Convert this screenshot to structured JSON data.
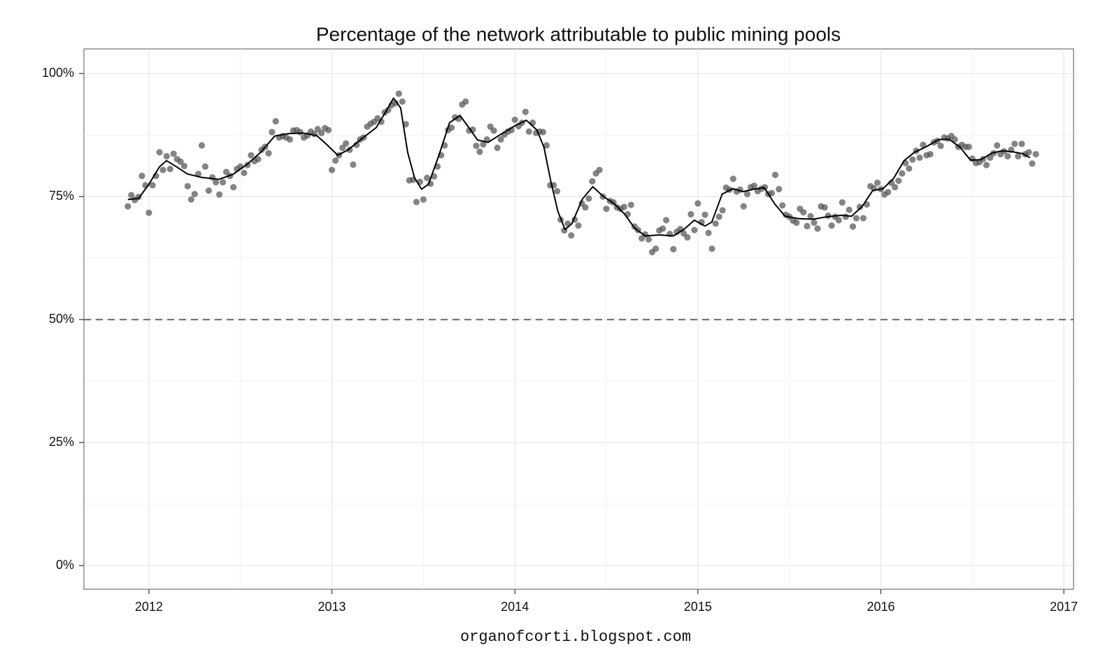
{
  "chart_data": {
    "type": "scatter",
    "title": "Percentage of the network attributable to public mining pools",
    "caption": "organofcorti.blogspot.com",
    "xlim": [
      2011.645,
      2017.053
    ],
    "xticks": [
      2012,
      2013,
      2014,
      2015,
      2016,
      2017
    ],
    "ylim": [
      -4.8,
      105
    ],
    "yticks": [
      {
        "value": 0,
        "label": "0%"
      },
      {
        "value": 25,
        "label": "25%"
      },
      {
        "value": 50,
        "label": "50%"
      },
      {
        "value": 75,
        "label": "75%"
      },
      {
        "value": 100,
        "label": "100%"
      }
    ],
    "grid": true,
    "minor_grid": true,
    "hline": 50,
    "hline_color": "#666666",
    "series": [
      {
        "type": "scatter",
        "color": "#555555",
        "x": [
          2011.885,
          2011.904,
          2011.923,
          2011.943,
          2011.962,
          2011.981,
          2012,
          2012.02,
          2012.039,
          2012.058,
          2012.077,
          2012.097,
          2012.116,
          2012.135,
          2012.154,
          2012.173,
          2012.193,
          2012.212,
          2012.231,
          2012.25,
          2012.27,
          2012.289,
          2012.308,
          2012.327,
          2012.347,
          2012.366,
          2012.385,
          2012.404,
          2012.423,
          2012.443,
          2012.462,
          2012.481,
          2012.5,
          2012.52,
          2012.539,
          2012.558,
          2012.577,
          2012.597,
          2012.616,
          2012.635,
          2012.654,
          2012.673,
          2012.693,
          2012.712,
          2012.731,
          2012.75,
          2012.77,
          2012.789,
          2012.808,
          2012.827,
          2012.847,
          2012.866,
          2012.885,
          2012.904,
          2012.923,
          2012.943,
          2012.962,
          2012.981,
          2013,
          2013.02,
          2013.039,
          2013.058,
          2013.077,
          2013.097,
          2013.116,
          2013.135,
          2013.154,
          2013.173,
          2013.193,
          2013.212,
          2013.231,
          2013.25,
          2013.27,
          2013.289,
          2013.308,
          2013.327,
          2013.347,
          2013.366,
          2013.385,
          2013.404,
          2013.423,
          2013.443,
          2013.462,
          2013.481,
          2013.5,
          2013.52,
          2013.539,
          2013.558,
          2013.577,
          2013.597,
          2013.616,
          2013.635,
          2013.654,
          2013.673,
          2013.693,
          2013.712,
          2013.731,
          2013.75,
          2013.77,
          2013.789,
          2013.808,
          2013.827,
          2013.847,
          2013.866,
          2013.885,
          2013.904,
          2013.923,
          2013.943,
          2013.962,
          2013.981,
          2014,
          2014.02,
          2014.039,
          2014.058,
          2014.077,
          2014.097,
          2014.116,
          2014.135,
          2014.154,
          2014.173,
          2014.193,
          2014.212,
          2014.231,
          2014.25,
          2014.27,
          2014.289,
          2014.308,
          2014.327,
          2014.347,
          2014.366,
          2014.385,
          2014.404,
          2014.423,
          2014.443,
          2014.462,
          2014.481,
          2014.5,
          2014.52,
          2014.539,
          2014.558,
          2014.577,
          2014.597,
          2014.616,
          2014.635,
          2014.654,
          2014.673,
          2014.693,
          2014.712,
          2014.731,
          2014.75,
          2014.77,
          2014.789,
          2014.808,
          2014.827,
          2014.847,
          2014.866,
          2014.885,
          2014.904,
          2014.923,
          2014.943,
          2014.962,
          2014.981,
          2015,
          2015.02,
          2015.039,
          2015.058,
          2015.077,
          2015.097,
          2015.116,
          2015.135,
          2015.154,
          2015.173,
          2015.193,
          2015.212,
          2015.231,
          2015.25,
          2015.27,
          2015.289,
          2015.308,
          2015.327,
          2015.347,
          2015.366,
          2015.385,
          2015.404,
          2015.423,
          2015.443,
          2015.462,
          2015.481,
          2015.5,
          2015.52,
          2015.539,
          2015.558,
          2015.577,
          2015.597,
          2015.616,
          2015.635,
          2015.654,
          2015.673,
          2015.693,
          2015.712,
          2015.731,
          2015.75,
          2015.77,
          2015.789,
          2015.808,
          2015.827,
          2015.847,
          2015.866,
          2015.885,
          2015.904,
          2015.923,
          2015.943,
          2015.962,
          2015.981,
          2016,
          2016.02,
          2016.039,
          2016.058,
          2016.077,
          2016.097,
          2016.116,
          2016.135,
          2016.154,
          2016.173,
          2016.193,
          2016.212,
          2016.231,
          2016.25,
          2016.27,
          2016.289,
          2016.308,
          2016.327,
          2016.347,
          2016.366,
          2016.385,
          2016.404,
          2016.423,
          2016.443,
          2016.462,
          2016.481,
          2016.5,
          2016.52,
          2016.539,
          2016.558,
          2016.577,
          2016.597,
          2016.616,
          2016.635,
          2016.654,
          2016.673,
          2016.693,
          2016.712,
          2016.731,
          2016.75,
          2016.77,
          2016.789,
          2016.808,
          2016.827,
          2016.847
        ],
        "values": [
          73.0,
          75.3,
          74.3,
          74.9,
          79.2,
          77.3,
          71.7,
          77.3,
          79.2,
          84.0,
          80.4,
          83.2,
          80.6,
          83.7,
          82.6,
          82.1,
          81.2,
          77.1,
          74.4,
          75.5,
          79.6,
          85.4,
          81.1,
          76.2,
          78.9,
          77.9,
          75.4,
          77.9,
          80.0,
          79.2,
          76.9,
          80.6,
          81.1,
          79.8,
          81.4,
          83.4,
          82.2,
          82.6,
          84.5,
          85.1,
          83.8,
          88.1,
          90.3,
          87.0,
          87.3,
          87.0,
          86.6,
          88.4,
          88.5,
          88.1,
          87.0,
          87.4,
          88.2,
          87.7,
          88.7,
          87.9,
          88.9,
          88.5,
          80.4,
          82.3,
          83.4,
          84.9,
          85.8,
          84.5,
          81.5,
          85.5,
          86.6,
          87.0,
          89.2,
          89.8,
          90.2,
          90.9,
          90.2,
          92.1,
          92.6,
          93.6,
          94.0,
          95.9,
          94.3,
          89.7,
          78.3,
          78.4,
          73.9,
          78.0,
          74.4,
          78.8,
          77.6,
          79.1,
          81.1,
          83.4,
          85.4,
          88.5,
          89.0,
          91.1,
          90.8,
          93.7,
          94.3,
          88.4,
          88.6,
          85.3,
          84.1,
          85.6,
          86.6,
          89.2,
          88.4,
          84.9,
          86.6,
          87.6,
          88.2,
          88.5,
          90.6,
          89.3,
          90.0,
          92.2,
          88.2,
          90.0,
          87.9,
          88.2,
          88.1,
          85.4,
          77.3,
          77.3,
          76.1,
          70.3,
          68.1,
          69.5,
          67.1,
          70.3,
          69.1,
          73.6,
          72.8,
          74.6,
          78.1,
          79.7,
          80.4,
          75.0,
          72.5,
          74.1,
          73.8,
          72.8,
          72.5,
          72.9,
          71.4,
          73.3,
          68.9,
          68.2,
          66.5,
          67.3,
          66.3,
          63.7,
          64.4,
          68.1,
          68.5,
          70.2,
          67.4,
          64.3,
          67.8,
          68.4,
          67.5,
          66.7,
          71.4,
          68.2,
          73.6,
          69.8,
          71.3,
          67.6,
          64.4,
          69.5,
          70.9,
          72.2,
          76.8,
          76.4,
          78.6,
          76.0,
          76.4,
          73.0,
          75.5,
          76.9,
          77.2,
          76.1,
          76.6,
          76.9,
          75.5,
          75.7,
          79.4,
          76.5,
          73.2,
          71.3,
          70.9,
          70.1,
          69.7,
          72.5,
          71.8,
          69.0,
          71.0,
          69.7,
          68.5,
          73.0,
          72.8,
          71.1,
          69.1,
          70.9,
          70.2,
          73.8,
          70.9,
          72.3,
          68.9,
          70.6,
          72.9,
          70.6,
          73.4,
          77.1,
          76.7,
          77.8,
          76.5,
          75.4,
          75.9,
          77.8,
          76.9,
          78.2,
          79.7,
          81.8,
          80.7,
          82.5,
          84.3,
          82.9,
          85.5,
          83.4,
          83.6,
          86.0,
          86.3,
          85.3,
          87.0,
          86.8,
          87.3,
          86.6,
          85.1,
          85.5,
          85.1,
          85.1,
          82.7,
          81.8,
          82.0,
          82.6,
          81.4,
          82.9,
          83.8,
          85.4,
          83.6,
          84.2,
          83.2,
          84.5,
          85.7,
          83.2,
          85.7,
          83.6,
          84.0,
          81.7,
          83.6
        ]
      },
      {
        "type": "line",
        "color": "#000000",
        "x": [
          2011.885,
          2011.943,
          2012,
          2012.057,
          2012.096,
          2012.153,
          2012.21,
          2012.287,
          2012.382,
          2012.459,
          2012.535,
          2012.611,
          2012.688,
          2012.764,
          2012.841,
          2012.917,
          2012.974,
          2013.032,
          2013.089,
          2013.165,
          2013.242,
          2013.299,
          2013.337,
          2013.376,
          2013.414,
          2013.452,
          2013.49,
          2013.528,
          2013.586,
          2013.643,
          2013.7,
          2013.739,
          2013.796,
          2013.853,
          2013.93,
          2014.006,
          2014.063,
          2014.121,
          2014.159,
          2014.197,
          2014.235,
          2014.274,
          2014.312,
          2014.369,
          2014.426,
          2014.484,
          2014.541,
          2014.598,
          2014.656,
          2014.713,
          2014.789,
          2014.866,
          2014.923,
          2014.981,
          2015.038,
          2015.076,
          2015.133,
          2015.191,
          2015.248,
          2015.305,
          2015.363,
          2015.42,
          2015.477,
          2015.554,
          2015.63,
          2015.707,
          2015.783,
          2015.84,
          2015.898,
          2015.955,
          2016.012,
          2016.07,
          2016.127,
          2016.184,
          2016.242,
          2016.318,
          2016.375,
          2016.433,
          2016.49,
          2016.547,
          2016.605,
          2016.662,
          2016.719,
          2016.777,
          2016.815
        ],
        "values": [
          74.4,
          74.6,
          77.5,
          81.0,
          82.3,
          81.0,
          79.6,
          78.9,
          78.5,
          79.5,
          81.5,
          84.0,
          87.3,
          87.8,
          87.9,
          87.4,
          85.5,
          83.4,
          84.5,
          86.8,
          89.0,
          92.5,
          95.0,
          93.0,
          84.0,
          78.8,
          76.5,
          77.5,
          83.5,
          90.0,
          91.5,
          89.5,
          86.5,
          86.0,
          87.8,
          89.5,
          90.5,
          88.5,
          85.0,
          78.0,
          72.0,
          68.3,
          69.5,
          74.5,
          77.0,
          75.0,
          73.6,
          71.5,
          68.5,
          67.0,
          67.2,
          67.0,
          68.3,
          70.2,
          69.0,
          69.8,
          75.5,
          76.6,
          76.0,
          76.5,
          76.8,
          73.5,
          71.0,
          70.5,
          70.4,
          70.9,
          71.2,
          71.0,
          73.0,
          76.2,
          76.6,
          78.7,
          82.3,
          84.0,
          85.0,
          86.6,
          86.6,
          85.0,
          82.4,
          82.5,
          83.8,
          84.3,
          84.1,
          83.7,
          82.9
        ]
      }
    ]
  }
}
